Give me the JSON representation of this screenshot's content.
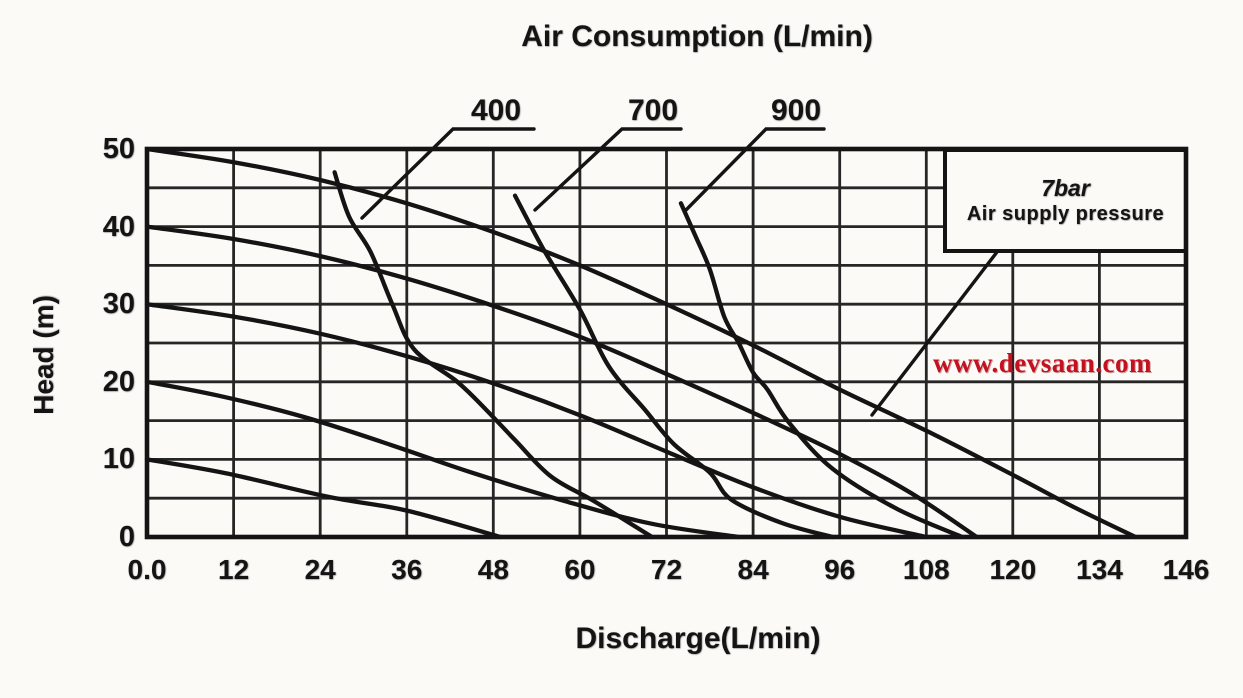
{
  "title": "Air Consumption (L/min)",
  "axes": {
    "x_label": "Discharge(L/min)",
    "y_label": "Head (m)",
    "x_ticks": [
      "0.0",
      "12",
      "24",
      "36",
      "48",
      "60",
      "72",
      "84",
      "96",
      "108",
      "120",
      "134",
      "146"
    ],
    "y_ticks": [
      "50",
      "40",
      "30",
      "20",
      "10",
      "0"
    ]
  },
  "legend_box": {
    "line1": "7bar",
    "line2": "Air supply pressure"
  },
  "watermark": {
    "text": "www.devsaan.com",
    "color": "#c41120"
  },
  "colors": {
    "ink": "#141414",
    "background": "#fbfaf7"
  },
  "chart_data": {
    "type": "line",
    "title": "Air Consumption (L/min)",
    "xlabel": "Discharge(L/min)",
    "ylabel": "Head (m)",
    "xlim": [
      0,
      146
    ],
    "ylim": [
      0,
      50
    ],
    "grid": true,
    "x_gridline_values": [
      0,
      12,
      24,
      36,
      48,
      60,
      72,
      84,
      96,
      108,
      120,
      134,
      146
    ],
    "y_gridline_step": 5,
    "legend_position": "top-right",
    "note": "7bar Air supply pressure",
    "curve_labels": [
      {
        "text": "400",
        "series": "air-curve-400"
      },
      {
        "text": "700",
        "series": "air-curve-700"
      },
      {
        "text": "900",
        "series": "air-curve-900"
      }
    ],
    "series": [
      {
        "name": "head-curve-50",
        "points": [
          [
            0,
            50
          ],
          [
            12,
            48.3
          ],
          [
            24,
            46
          ],
          [
            36,
            43
          ],
          [
            48,
            39.3
          ],
          [
            60,
            35
          ],
          [
            72,
            30
          ],
          [
            84,
            24.7
          ],
          [
            96,
            19
          ],
          [
            108,
            13.7
          ],
          [
            120,
            8
          ],
          [
            130,
            3.8
          ],
          [
            139,
            0
          ]
        ]
      },
      {
        "name": "head-curve-40",
        "points": [
          [
            0,
            40
          ],
          [
            12,
            38.4
          ],
          [
            24,
            36.2
          ],
          [
            36,
            33.3
          ],
          [
            48,
            29.8
          ],
          [
            60,
            25.8
          ],
          [
            72,
            21
          ],
          [
            84,
            16
          ],
          [
            96,
            10.7
          ],
          [
            106,
            5.6
          ],
          [
            115,
            0
          ]
        ]
      },
      {
        "name": "head-curve-30",
        "points": [
          [
            0,
            30
          ],
          [
            12,
            28.4
          ],
          [
            24,
            26.2
          ],
          [
            36,
            23.3
          ],
          [
            48,
            19.8
          ],
          [
            60,
            15.7
          ],
          [
            72,
            11
          ],
          [
            84,
            6.4
          ],
          [
            96,
            2.6
          ],
          [
            108,
            0
          ]
        ]
      },
      {
        "name": "head-curve-20",
        "points": [
          [
            0,
            20
          ],
          [
            10,
            18.2
          ],
          [
            22,
            15.4
          ],
          [
            34,
            11.8
          ],
          [
            45,
            8.3
          ],
          [
            58,
            4.6
          ],
          [
            70,
            1.7
          ],
          [
            82,
            0
          ]
        ]
      },
      {
        "name": "head-curve-10",
        "points": [
          [
            0,
            10
          ],
          [
            11,
            8.2
          ],
          [
            25,
            5.2
          ],
          [
            36,
            3.4
          ],
          [
            49,
            0
          ]
        ]
      },
      {
        "name": "air-curve-400",
        "points": [
          [
            26,
            47
          ],
          [
            28,
            41.3
          ],
          [
            31,
            36.7
          ],
          [
            34,
            30
          ],
          [
            37,
            24.2
          ],
          [
            43,
            20
          ],
          [
            47,
            16.4
          ],
          [
            51,
            12.5
          ],
          [
            56,
            7.8
          ],
          [
            62,
            4.6
          ],
          [
            70,
            0
          ]
        ]
      },
      {
        "name": "air-curve-700",
        "points": [
          [
            51,
            44
          ],
          [
            55,
            37
          ],
          [
            60,
            29.3
          ],
          [
            64,
            22
          ],
          [
            69,
            16.4
          ],
          [
            73,
            12
          ],
          [
            78,
            8.3
          ],
          [
            81,
            4.8
          ],
          [
            88,
            1.8
          ],
          [
            95,
            0
          ]
        ]
      },
      {
        "name": "air-curve-900",
        "points": [
          [
            74,
            43
          ],
          [
            76,
            38.8
          ],
          [
            78,
            34.5
          ],
          [
            80,
            28.4
          ],
          [
            82,
            25
          ],
          [
            84,
            21.2
          ],
          [
            86,
            19
          ],
          [
            89,
            14.7
          ],
          [
            95,
            8.8
          ],
          [
            104,
            3.6
          ],
          [
            113,
            0
          ]
        ]
      }
    ]
  }
}
